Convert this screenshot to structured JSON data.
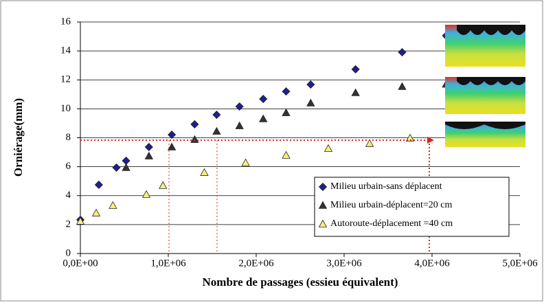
{
  "chart_data": {
    "type": "scatter",
    "xlabel": "Nombre de passages (essieu équivalent)",
    "ylabel": "Orniérage(mm)",
    "xlim": [
      0,
      5000000
    ],
    "xticks": [
      {
        "value": 0,
        "label": "0,0E+00"
      },
      {
        "value": 1000000,
        "label": "1,0E+06"
      },
      {
        "value": 2000000,
        "label": "2,0E+06"
      },
      {
        "value": 3000000,
        "label": "3,0E+06"
      },
      {
        "value": 4000000,
        "label": "4,0E+06"
      },
      {
        "value": 5000000,
        "label": "5,0E+06"
      }
    ],
    "ylim": [
      0,
      16
    ],
    "yticks": [
      0,
      2,
      4,
      6,
      8,
      10,
      12,
      14,
      16
    ],
    "grid": true,
    "legend": "lower right",
    "series": [
      {
        "name": "Milieu urbain-sans déplacent",
        "color": "#1f1f8f",
        "marker": "diamond",
        "x": [
          0,
          210000,
          410000,
          520000,
          780000,
          1040000,
          1300000,
          1550000,
          1810000,
          2080000,
          2340000,
          2620000,
          3130000,
          3660000,
          4160000
        ],
        "values": [
          2.33,
          4.75,
          5.94,
          6.41,
          7.36,
          8.21,
          8.93,
          9.59,
          10.16,
          10.68,
          11.2,
          11.68,
          12.73,
          13.91,
          15.05
        ]
      },
      {
        "name": "Milieu urbain-déplacent=20 cm",
        "color": "#333333",
        "marker": "triangle",
        "x": [
          520000,
          780000,
          1040000,
          1300000,
          1550000,
          1810000,
          2080000,
          2340000,
          2620000,
          3130000,
          3660000,
          4160000
        ],
        "values": [
          5.94,
          6.74,
          7.36,
          7.88,
          8.45,
          8.83,
          9.31,
          9.73,
          10.4,
          11.11,
          11.54,
          11.7
        ]
      },
      {
        "name": "Autoroute-déplacement =40 cm",
        "color": "#f5f07a",
        "marker": "triangle",
        "x": [
          0,
          180000,
          370000,
          750000,
          940000,
          1410000,
          1880000,
          2340000,
          2820000,
          3290000,
          3750000
        ],
        "values": [
          2.23,
          2.8,
          3.32,
          4.08,
          4.7,
          5.6,
          6.27,
          6.79,
          7.26,
          7.6,
          7.98
        ]
      }
    ]
  }
}
